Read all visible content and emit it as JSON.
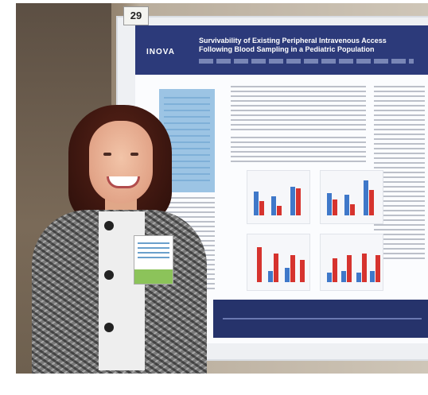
{
  "photo": {
    "booth_number": "29",
    "poster": {
      "header_color": "#2c3a7a",
      "logo_text": "INOVA",
      "title": "Survivability of Existing Peripheral Intravenous Access Following Blood Sampling in a Pediatric Population"
    },
    "accent_colors": {
      "chart_blue": "#3f78c9",
      "chart_red": "#d6332e"
    }
  }
}
